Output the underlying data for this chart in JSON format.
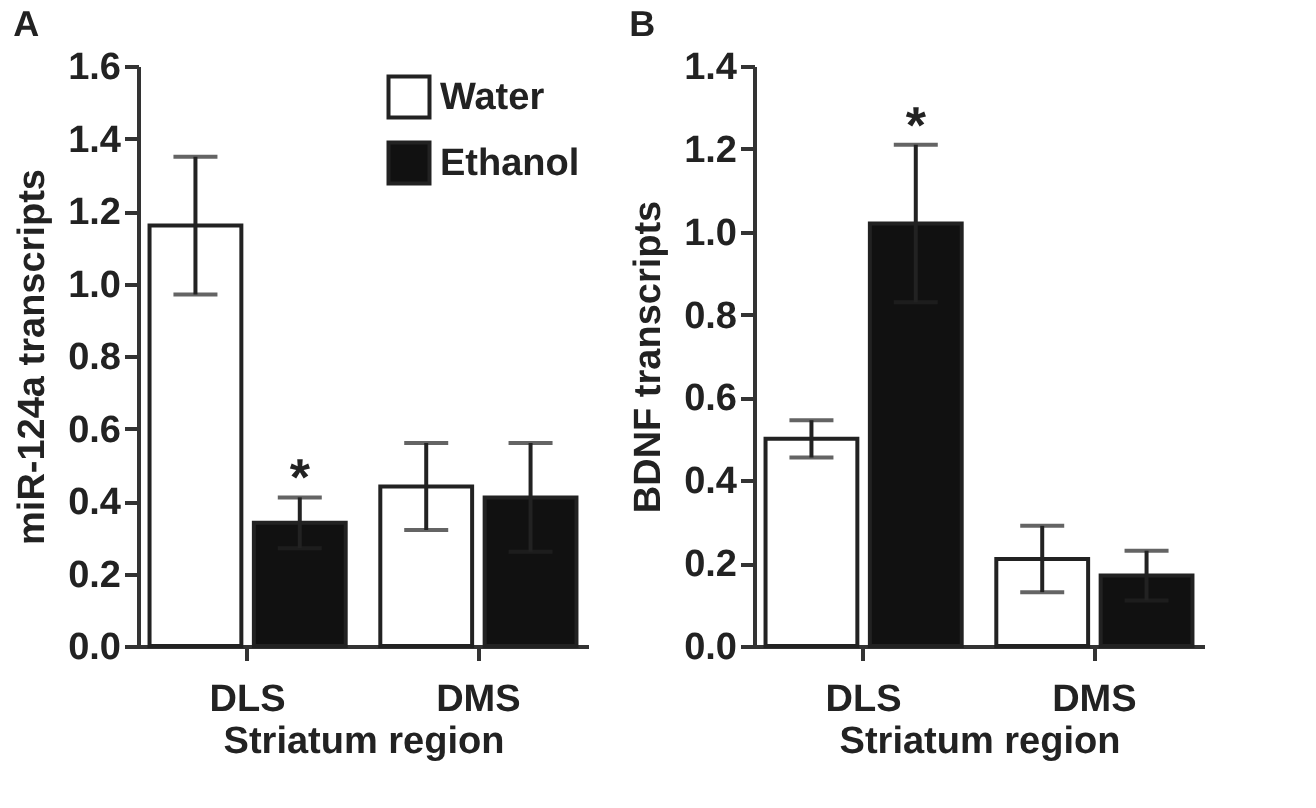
{
  "chart_data": [
    {
      "type": "bar",
      "title": "A",
      "xlabel": "Striatum region",
      "ylabel": "miR-124a transcripts",
      "categories": [
        "DLS",
        "DMS"
      ],
      "ylim": [
        0,
        1.6
      ],
      "yticks": [
        {
          "value": 0,
          "label": "0.0"
        },
        {
          "value": 0.2,
          "label": "0.2"
        },
        {
          "value": 0.4,
          "label": "0.4"
        },
        {
          "value": 0.6,
          "label": "0.6"
        },
        {
          "value": 0.8,
          "label": "0.8"
        },
        {
          "value": 1,
          "label": "1.0"
        },
        {
          "value": 1.2,
          "label": "1.2"
        },
        {
          "value": 1.4,
          "label": "1.4"
        },
        {
          "value": 1.6,
          "label": "1.6"
        }
      ],
      "legend": "top right",
      "grid": false,
      "series": [
        {
          "name": "Water",
          "color": "#ffffff",
          "values": [
            1.16,
            0.44
          ],
          "errors": [
            [
              0.97,
              1.35
            ],
            [
              0.32,
              0.56
            ]
          ]
        },
        {
          "name": "Ethanol",
          "color": "#111111",
          "values": [
            0.34,
            0.41
          ],
          "errors": [
            [
              0.27,
              0.41
            ],
            [
              0.26,
              0.56
            ]
          ]
        }
      ],
      "annotations": [
        {
          "text": "*",
          "x": "DLS",
          "y": 0.41
        }
      ]
    },
    {
      "type": "bar",
      "title": "B",
      "xlabel": "Striatum region",
      "ylabel": "BDNF transcripts",
      "categories": [
        "DLS",
        "DMS"
      ],
      "ylim": [
        0,
        1.4
      ],
      "yticks": [
        {
          "value": 0,
          "label": "0.0"
        },
        {
          "value": 0.2,
          "label": "0.2"
        },
        {
          "value": 0.4,
          "label": "0.4"
        },
        {
          "value": 0.6,
          "label": "0.6"
        },
        {
          "value": 0.8,
          "label": "0.8"
        },
        {
          "value": 1,
          "label": "1.0"
        },
        {
          "value": 1.2,
          "label": "1.2"
        },
        {
          "value": 1.4,
          "label": "1.4"
        }
      ],
      "legend": false,
      "grid": false,
      "series": [
        {
          "color": "#ffffff",
          "values": [
            0.5,
            0.21
          ],
          "errors": [
            [
              0.455,
              0.545
            ],
            [
              0.13,
              0.29
            ]
          ]
        },
        {
          "color": "#111111",
          "values": [
            1.02,
            0.17
          ],
          "errors": [
            [
              0.83,
              1.21
            ],
            [
              0.11,
              0.23
            ]
          ]
        }
      ],
      "annotations": [
        "*"
      ]
    }
  ]
}
